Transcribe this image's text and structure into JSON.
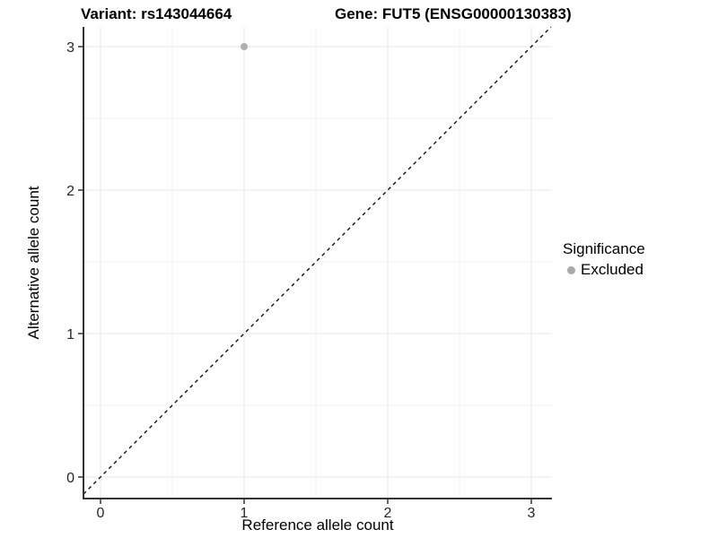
{
  "header": {
    "title_left": "Variant: rs143044664",
    "title_right": "Gene: FUT5 (ENSG00000130383)"
  },
  "chart_data": {
    "type": "scatter",
    "title_left": "Variant: rs143044664",
    "title_right": "Gene: FUT5 (ENSG00000130383)",
    "xlabel": "Reference allele count",
    "ylabel": "Alternative allele count",
    "xlim": [
      -0.12,
      3.14
    ],
    "ylim": [
      -0.15,
      3.14
    ],
    "xticks": [
      0,
      1,
      2,
      3
    ],
    "yticks": [
      0,
      1,
      2,
      3
    ],
    "minor_ticks_x": [
      0.5,
      1.5,
      2.5
    ],
    "minor_ticks_y": [
      0.5,
      1.5,
      2.5
    ],
    "grid": "major and minor, light gray on white",
    "series": [
      {
        "name": "Excluded",
        "marker": "circle",
        "color": "#b0b0b0",
        "points": [
          {
            "x": 1,
            "y": 3
          }
        ]
      }
    ],
    "reference_line": {
      "description": "identity line y = x",
      "slope": 1,
      "intercept": 0,
      "style": "dashed",
      "color": "#000000"
    },
    "legend": {
      "title": "Significance",
      "position": "right",
      "items": [
        {
          "label": "Excluded",
          "marker": "circle",
          "color": "#a9a9a9"
        }
      ]
    },
    "colors": {
      "axis_line": "#333333",
      "tick_label": "#262626",
      "grid_major": "#e5e5e5",
      "grid_minor": "#f2f2f2",
      "background": "#ffffff"
    }
  }
}
